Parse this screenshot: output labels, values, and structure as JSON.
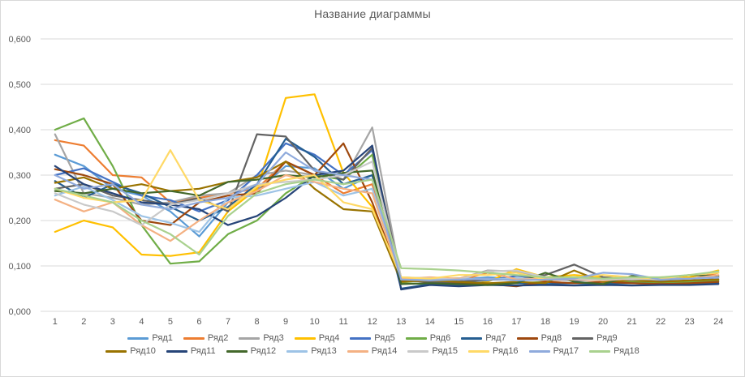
{
  "colors": {
    "background": "#FFFFFF",
    "grid": "#D9D9D9",
    "axis_line": "#D9D9D9",
    "border": "#D9D9D9",
    "text": "#595959"
  },
  "chart_data": {
    "type": "line",
    "title": "Название диаграммы",
    "xlabel": "",
    "ylabel": "",
    "grid": true,
    "legend_position": "bottom",
    "legend_rows": [
      9,
      9
    ],
    "ylim": [
      0.0,
      0.6
    ],
    "y_tick_step": 0.1,
    "y_tick_labels": [
      "0,000",
      "0,100",
      "0,200",
      "0,300",
      "0,400",
      "0,500",
      "0,600"
    ],
    "x": [
      1,
      2,
      3,
      4,
      5,
      6,
      7,
      8,
      9,
      10,
      11,
      12,
      13,
      14,
      15,
      16,
      17,
      18,
      19,
      20,
      21,
      22,
      23,
      24
    ],
    "x_tick_labels": [
      "1",
      "2",
      "3",
      "4",
      "5",
      "6",
      "7",
      "8",
      "9",
      "10",
      "11",
      "12",
      "13",
      "14",
      "15",
      "16",
      "17",
      "18",
      "19",
      "20",
      "21",
      "22",
      "23",
      "24"
    ],
    "series": [
      {
        "name": "Ряд1",
        "color": "#5B9BD5",
        "values": [
          0.345,
          0.32,
          0.27,
          0.255,
          0.22,
          0.165,
          0.24,
          0.265,
          0.32,
          0.315,
          0.27,
          0.3,
          0.075,
          0.072,
          0.07,
          0.075,
          0.072,
          0.07,
          0.072,
          0.075,
          0.072,
          0.07,
          0.072,
          0.075
        ]
      },
      {
        "name": "Ряд2",
        "color": "#ED7D31",
        "values": [
          0.377,
          0.365,
          0.3,
          0.295,
          0.24,
          0.25,
          0.26,
          0.27,
          0.33,
          0.3,
          0.26,
          0.28,
          0.07,
          0.072,
          0.068,
          0.085,
          0.072,
          0.068,
          0.07,
          0.072,
          0.07,
          0.072,
          0.07,
          0.085
        ]
      },
      {
        "name": "Ряд3",
        "color": "#A5A5A5",
        "values": [
          0.39,
          0.26,
          0.25,
          0.235,
          0.24,
          0.255,
          0.26,
          0.3,
          0.31,
          0.3,
          0.29,
          0.405,
          0.072,
          0.07,
          0.072,
          0.09,
          0.088,
          0.072,
          0.07,
          0.072,
          0.07,
          0.068,
          0.07,
          0.072
        ]
      },
      {
        "name": "Ряд4",
        "color": "#FFC000",
        "values": [
          0.175,
          0.2,
          0.185,
          0.125,
          0.122,
          0.13,
          0.22,
          0.27,
          0.47,
          0.478,
          0.305,
          0.23,
          0.065,
          0.07,
          0.073,
          0.065,
          0.093,
          0.075,
          0.08,
          0.075,
          0.072,
          0.075,
          0.075,
          0.09
        ]
      },
      {
        "name": "Ряд5",
        "color": "#4472C4",
        "values": [
          0.3,
          0.315,
          0.285,
          0.255,
          0.245,
          0.22,
          0.245,
          0.3,
          0.37,
          0.345,
          0.3,
          0.355,
          0.068,
          0.065,
          0.066,
          0.068,
          0.078,
          0.072,
          0.068,
          0.07,
          0.068,
          0.066,
          0.068,
          0.07
        ]
      },
      {
        "name": "Ряд6",
        "color": "#70AD47",
        "values": [
          0.4,
          0.425,
          0.32,
          0.19,
          0.105,
          0.11,
          0.17,
          0.2,
          0.26,
          0.3,
          0.29,
          0.345,
          0.062,
          0.06,
          0.062,
          0.06,
          0.062,
          0.065,
          0.062,
          0.06,
          0.065,
          0.062,
          0.065,
          0.068
        ]
      },
      {
        "name": "Ряд7",
        "color": "#255E91",
        "values": [
          0.287,
          0.25,
          0.28,
          0.26,
          0.23,
          0.2,
          0.23,
          0.28,
          0.38,
          0.34,
          0.28,
          0.3,
          0.05,
          0.06,
          0.058,
          0.06,
          0.062,
          0.06,
          0.062,
          0.06,
          0.062,
          0.06,
          0.06,
          0.062
        ]
      },
      {
        "name": "Ряд8",
        "color": "#9E480E",
        "values": [
          0.313,
          0.3,
          0.28,
          0.2,
          0.19,
          0.24,
          0.255,
          0.26,
          0.33,
          0.3,
          0.37,
          0.24,
          0.068,
          0.065,
          0.062,
          0.06,
          0.055,
          0.065,
          0.062,
          0.065,
          0.062,
          0.06,
          0.062,
          0.065
        ]
      },
      {
        "name": "Ряд9",
        "color": "#636363",
        "values": [
          0.27,
          0.28,
          0.255,
          0.245,
          0.235,
          0.25,
          0.22,
          0.39,
          0.385,
          0.31,
          0.29,
          0.36,
          0.07,
          0.065,
          0.065,
          0.07,
          0.07,
          0.08,
          0.103,
          0.075,
          0.07,
          0.07,
          0.07,
          0.075
        ]
      },
      {
        "name": "Ряд10",
        "color": "#997300",
        "values": [
          0.283,
          0.295,
          0.27,
          0.28,
          0.265,
          0.27,
          0.285,
          0.295,
          0.33,
          0.27,
          0.225,
          0.22,
          0.065,
          0.068,
          0.065,
          0.062,
          0.065,
          0.062,
          0.09,
          0.065,
          0.068,
          0.065,
          0.068,
          0.07
        ]
      },
      {
        "name": "Ряд11",
        "color": "#264478",
        "values": [
          0.32,
          0.28,
          0.26,
          0.24,
          0.235,
          0.225,
          0.19,
          0.21,
          0.25,
          0.3,
          0.31,
          0.365,
          0.048,
          0.058,
          0.055,
          0.058,
          0.057,
          0.058,
          0.057,
          0.058,
          0.057,
          0.058,
          0.058,
          0.06
        ]
      },
      {
        "name": "Ряд12",
        "color": "#43682B",
        "values": [
          0.265,
          0.26,
          0.27,
          0.26,
          0.265,
          0.255,
          0.285,
          0.29,
          0.3,
          0.295,
          0.305,
          0.31,
          0.06,
          0.062,
          0.06,
          0.058,
          0.062,
          0.085,
          0.065,
          0.06,
          0.078,
          0.072,
          0.08,
          0.078
        ]
      },
      {
        "name": "Ряд13",
        "color": "#9DC3E6",
        "values": [
          0.255,
          0.275,
          0.245,
          0.21,
          0.195,
          0.175,
          0.25,
          0.255,
          0.27,
          0.285,
          0.255,
          0.27,
          0.073,
          0.07,
          0.073,
          0.07,
          0.073,
          0.07,
          0.07,
          0.072,
          0.07,
          0.073,
          0.072,
          0.075
        ]
      },
      {
        "name": "Ряд14",
        "color": "#F4B183",
        "values": [
          0.246,
          0.22,
          0.24,
          0.19,
          0.155,
          0.2,
          0.24,
          0.265,
          0.3,
          0.285,
          0.27,
          0.26,
          0.072,
          0.075,
          0.072,
          0.088,
          0.07,
          0.072,
          0.07,
          0.068,
          0.072,
          0.07,
          0.072,
          0.08
        ]
      },
      {
        "name": "Ряд15",
        "color": "#C9C9C9",
        "values": [
          0.26,
          0.235,
          0.22,
          0.19,
          0.235,
          0.245,
          0.26,
          0.28,
          0.285,
          0.29,
          0.3,
          0.33,
          0.075,
          0.073,
          0.07,
          0.088,
          0.09,
          0.075,
          0.072,
          0.07,
          0.072,
          0.07,
          0.072,
          0.075
        ]
      },
      {
        "name": "Ряд16",
        "color": "#FFD966",
        "values": [
          0.27,
          0.25,
          0.24,
          0.245,
          0.355,
          0.245,
          0.225,
          0.275,
          0.29,
          0.3,
          0.24,
          0.225,
          0.075,
          0.072,
          0.08,
          0.08,
          0.085,
          0.07,
          0.075,
          0.08,
          0.075,
          0.072,
          0.08,
          0.085
        ]
      },
      {
        "name": "Ряд17",
        "color": "#8FAADC",
        "values": [
          0.3,
          0.27,
          0.28,
          0.235,
          0.225,
          0.24,
          0.25,
          0.28,
          0.35,
          0.31,
          0.3,
          0.29,
          0.07,
          0.068,
          0.07,
          0.072,
          0.068,
          0.07,
          0.072,
          0.085,
          0.082,
          0.07,
          0.072,
          0.075
        ]
      },
      {
        "name": "Ряд18",
        "color": "#A9D18E",
        "values": [
          0.27,
          0.255,
          0.24,
          0.2,
          0.17,
          0.125,
          0.21,
          0.26,
          0.28,
          0.29,
          0.28,
          0.29,
          0.095,
          0.093,
          0.09,
          0.085,
          0.08,
          0.075,
          0.075,
          0.072,
          0.075,
          0.075,
          0.08,
          0.088
        ]
      }
    ]
  }
}
